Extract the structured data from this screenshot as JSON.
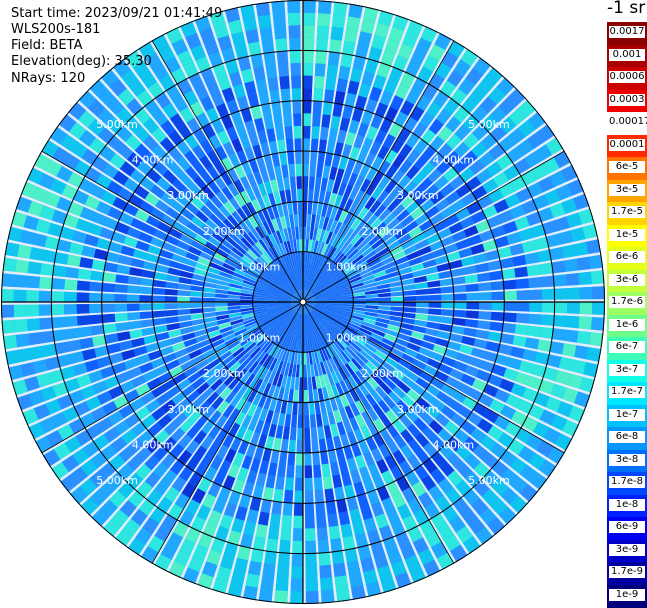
{
  "header": {
    "start_time": "Start time: 2023/09/21 01:41:49",
    "instrument": "WLS200s-181",
    "field": "Field: BETA",
    "elevation": "Elevation(deg): 35.30",
    "nrays": "NRays: 120"
  },
  "legend": {
    "unit": "-1 sr",
    "labels": [
      "0.0017",
      "0.001",
      "0.0006",
      "0.0003",
      "0.00017",
      "0.0001",
      "6e-5",
      "3e-5",
      "1.7e-5",
      "1e-5",
      "6e-6",
      "3e-6",
      "1.7e-6",
      "1e-6",
      "6e-7",
      "3e-7",
      "1.7e-7",
      "1e-7",
      "6e-8",
      "3e-8",
      "1.7e-8",
      "1e-8",
      "6e-9",
      "3e-9",
      "1.7e-9",
      "1e-9"
    ],
    "colors": [
      "#8b0000",
      "#a80000",
      "#cc0000",
      "#ee0000",
      "#ffffff",
      "#ff2a00",
      "#ff7300",
      "#ffa500",
      "#ffd400",
      "#ffff00",
      "#e6ff1a",
      "#c4ff3b",
      "#9cff64",
      "#6dff8a",
      "#3dffb8",
      "#14ffe6",
      "#00e8ff",
      "#00c0ff",
      "#0098ff",
      "#0070ff",
      "#0048ff",
      "#0020ff",
      "#0000f0",
      "#0000c8",
      "#0000a0",
      "#00007a"
    ]
  },
  "chart_data": {
    "type": "heatmap",
    "projection": "polar PPI scan",
    "field": "BETA",
    "n_rays": 120,
    "elevation_deg": 35.3,
    "max_range_km": 6.0,
    "range_rings_km": [
      1.0,
      2.0,
      3.0,
      4.0,
      5.0
    ],
    "ring_labels": [
      "1.00km",
      "2.00km",
      "3.00km",
      "4.00km",
      "5.00km"
    ],
    "color_scale": "log",
    "value_range": [
      1e-09,
      0.0017
    ]
  }
}
